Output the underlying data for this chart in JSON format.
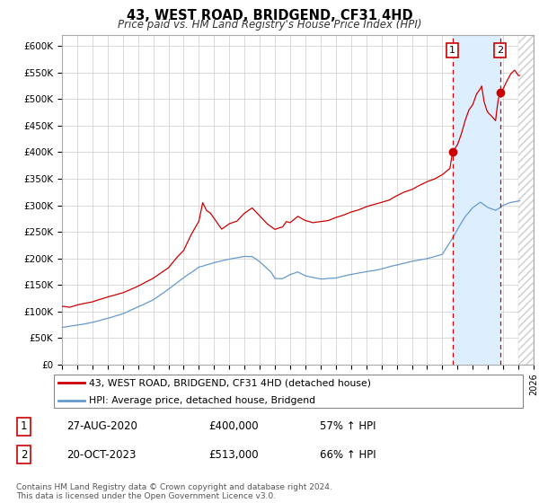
{
  "title": "43, WEST ROAD, BRIDGEND, CF31 4HD",
  "subtitle": "Price paid vs. HM Land Registry's House Price Index (HPI)",
  "ylabel_ticks": [
    "£0",
    "£50K",
    "£100K",
    "£150K",
    "£200K",
    "£250K",
    "£300K",
    "£350K",
    "£400K",
    "£450K",
    "£500K",
    "£550K",
    "£600K"
  ],
  "ytick_values": [
    0,
    50000,
    100000,
    150000,
    200000,
    250000,
    300000,
    350000,
    400000,
    450000,
    500000,
    550000,
    600000
  ],
  "ylim": [
    0,
    620000
  ],
  "xlim_start": 1995,
  "xlim_end": 2026,
  "xticks": [
    1995,
    1996,
    1997,
    1998,
    1999,
    2000,
    2001,
    2002,
    2003,
    2004,
    2005,
    2006,
    2007,
    2008,
    2009,
    2010,
    2011,
    2012,
    2013,
    2014,
    2015,
    2016,
    2017,
    2018,
    2019,
    2020,
    2021,
    2022,
    2023,
    2024,
    2025,
    2026
  ],
  "line1_color": "#cc0000",
  "line2_color": "#6699cc",
  "vline_color": "#cc0000",
  "shade_between_color": "#ddeeff",
  "legend_label1": "43, WEST ROAD, BRIDGEND, CF31 4HD (detached house)",
  "legend_label2": "HPI: Average price, detached house, Bridgend",
  "annotation1_num": "1",
  "annotation1_date": "27-AUG-2020",
  "annotation1_price": "£400,000",
  "annotation1_hpi": "57% ↑ HPI",
  "annotation2_num": "2",
  "annotation2_date": "20-OCT-2023",
  "annotation2_price": "£513,000",
  "annotation2_hpi": "66% ↑ HPI",
  "footnote": "Contains HM Land Registry data © Crown copyright and database right 2024.\nThis data is licensed under the Open Government Licence v3.0.",
  "sale1_x": 2020.667,
  "sale1_y": 400000,
  "sale2_x": 2023.792,
  "sale2_y": 513000,
  "future_start": 2025.0
}
